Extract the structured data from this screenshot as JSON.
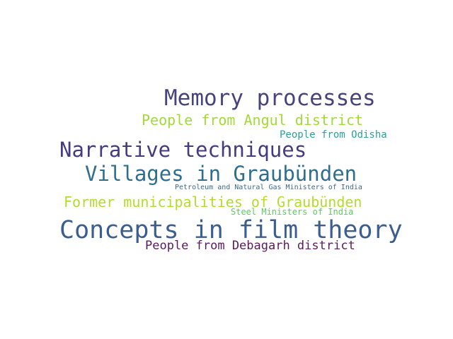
{
  "words": [
    {
      "text": "Memory processes",
      "color": "#46437e"
    },
    {
      "text": "People from Angul district",
      "color": "#a2da3c"
    },
    {
      "text": "People from Odisha",
      "color": "#2aa198"
    },
    {
      "text": "Narrative techniques",
      "color": "#463a80"
    },
    {
      "text": "Villages in Graubünden",
      "color": "#2f6f8e"
    },
    {
      "text": "Petroleum and Natural Gas Ministers of India",
      "color": "#3b6a8c"
    },
    {
      "text": "Former municipalities of Graubünden",
      "color": "#b4dc2c"
    },
    {
      "text": "Steel Ministers of India",
      "color": "#5ec962"
    },
    {
      "text": "Concepts in film theory",
      "color": "#3b5e8f"
    },
    {
      "text": "People from Debagarh district",
      "color": "#5a1b5e"
    }
  ]
}
